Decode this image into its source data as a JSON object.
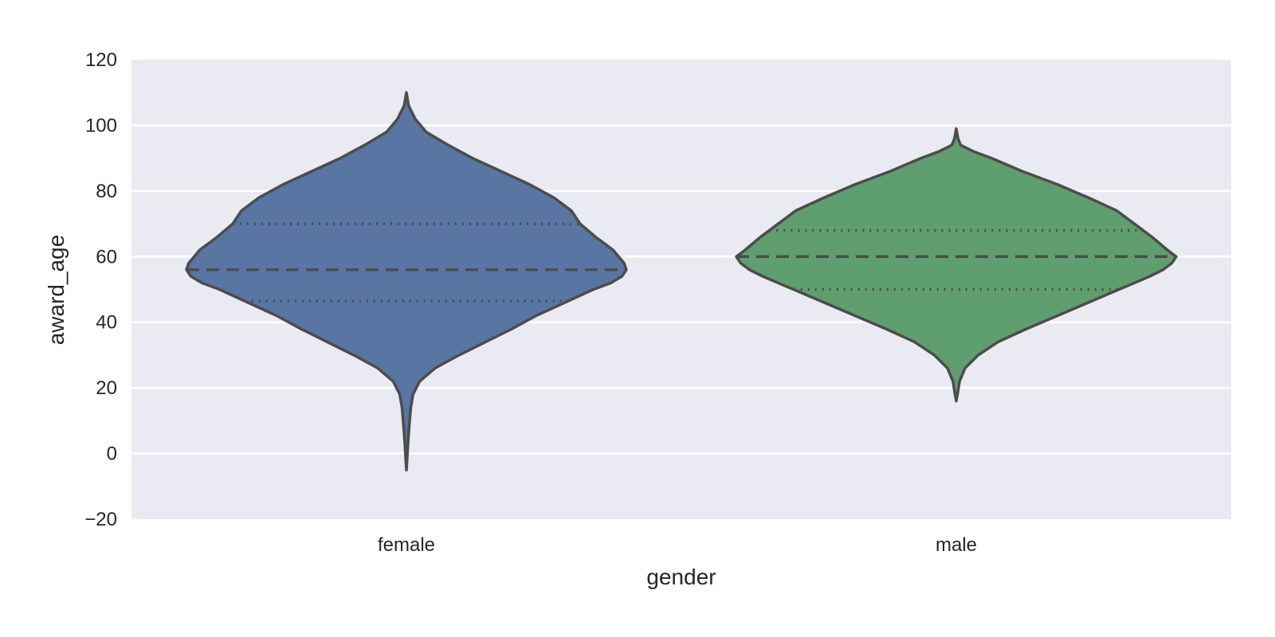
{
  "chart_data": {
    "type": "violin",
    "xlabel": "gender",
    "ylabel": "award_age",
    "ylim": [
      -20,
      120
    ],
    "y_ticks": [
      120,
      100,
      80,
      60,
      40,
      20,
      0,
      -20
    ],
    "y_tick_labels": [
      "120",
      "100",
      "80",
      "60",
      "40",
      "20",
      "0",
      "−20"
    ],
    "grid": true,
    "background": "#EAEAF2",
    "grid_color": "#FFFFFF",
    "outline_color": "#4C4C4C",
    "inner": "quartile",
    "categories": [
      "female",
      "male"
    ],
    "series": [
      {
        "category": "female",
        "color": "#5975A4",
        "range": [
          -5,
          110
        ],
        "median": 56,
        "q1": 46.5,
        "q3": 70,
        "density": [
          [
            110,
            0.0
          ],
          [
            106,
            0.01
          ],
          [
            102,
            0.04
          ],
          [
            98,
            0.09
          ],
          [
            94,
            0.19
          ],
          [
            90,
            0.3
          ],
          [
            86,
            0.43
          ],
          [
            82,
            0.56
          ],
          [
            78,
            0.67
          ],
          [
            74,
            0.75
          ],
          [
            70,
            0.79
          ],
          [
            66,
            0.86
          ],
          [
            62,
            0.94
          ],
          [
            58,
            0.99
          ],
          [
            56,
            1.0
          ],
          [
            54,
            0.98
          ],
          [
            52,
            0.93
          ],
          [
            50,
            0.85
          ],
          [
            46,
            0.72
          ],
          [
            42,
            0.59
          ],
          [
            38,
            0.48
          ],
          [
            34,
            0.36
          ],
          [
            30,
            0.24
          ],
          [
            26,
            0.13
          ],
          [
            22,
            0.06
          ],
          [
            18,
            0.03
          ],
          [
            14,
            0.02
          ],
          [
            10,
            0.015
          ],
          [
            6,
            0.01
          ],
          [
            2,
            0.006
          ],
          [
            -2,
            0.003
          ],
          [
            -5,
            0.0
          ]
        ]
      },
      {
        "category": "male",
        "color": "#5F9E6E",
        "range": [
          16,
          99
        ],
        "median": 60,
        "q1": 50,
        "q3": 68,
        "density": [
          [
            99,
            0.0
          ],
          [
            96,
            0.008
          ],
          [
            94,
            0.02
          ],
          [
            92,
            0.08
          ],
          [
            90,
            0.16
          ],
          [
            86,
            0.3
          ],
          [
            82,
            0.46
          ],
          [
            78,
            0.6
          ],
          [
            74,
            0.73
          ],
          [
            70,
            0.81
          ],
          [
            66,
            0.89
          ],
          [
            62,
            0.96
          ],
          [
            60,
            1.0
          ],
          [
            58,
            0.98
          ],
          [
            56,
            0.94
          ],
          [
            54,
            0.88
          ],
          [
            52,
            0.81
          ],
          [
            50,
            0.74
          ],
          [
            46,
            0.6
          ],
          [
            42,
            0.46
          ],
          [
            38,
            0.32
          ],
          [
            34,
            0.19
          ],
          [
            30,
            0.1
          ],
          [
            26,
            0.04
          ],
          [
            22,
            0.015
          ],
          [
            19,
            0.008
          ],
          [
            16,
            0.0
          ]
        ]
      }
    ]
  }
}
